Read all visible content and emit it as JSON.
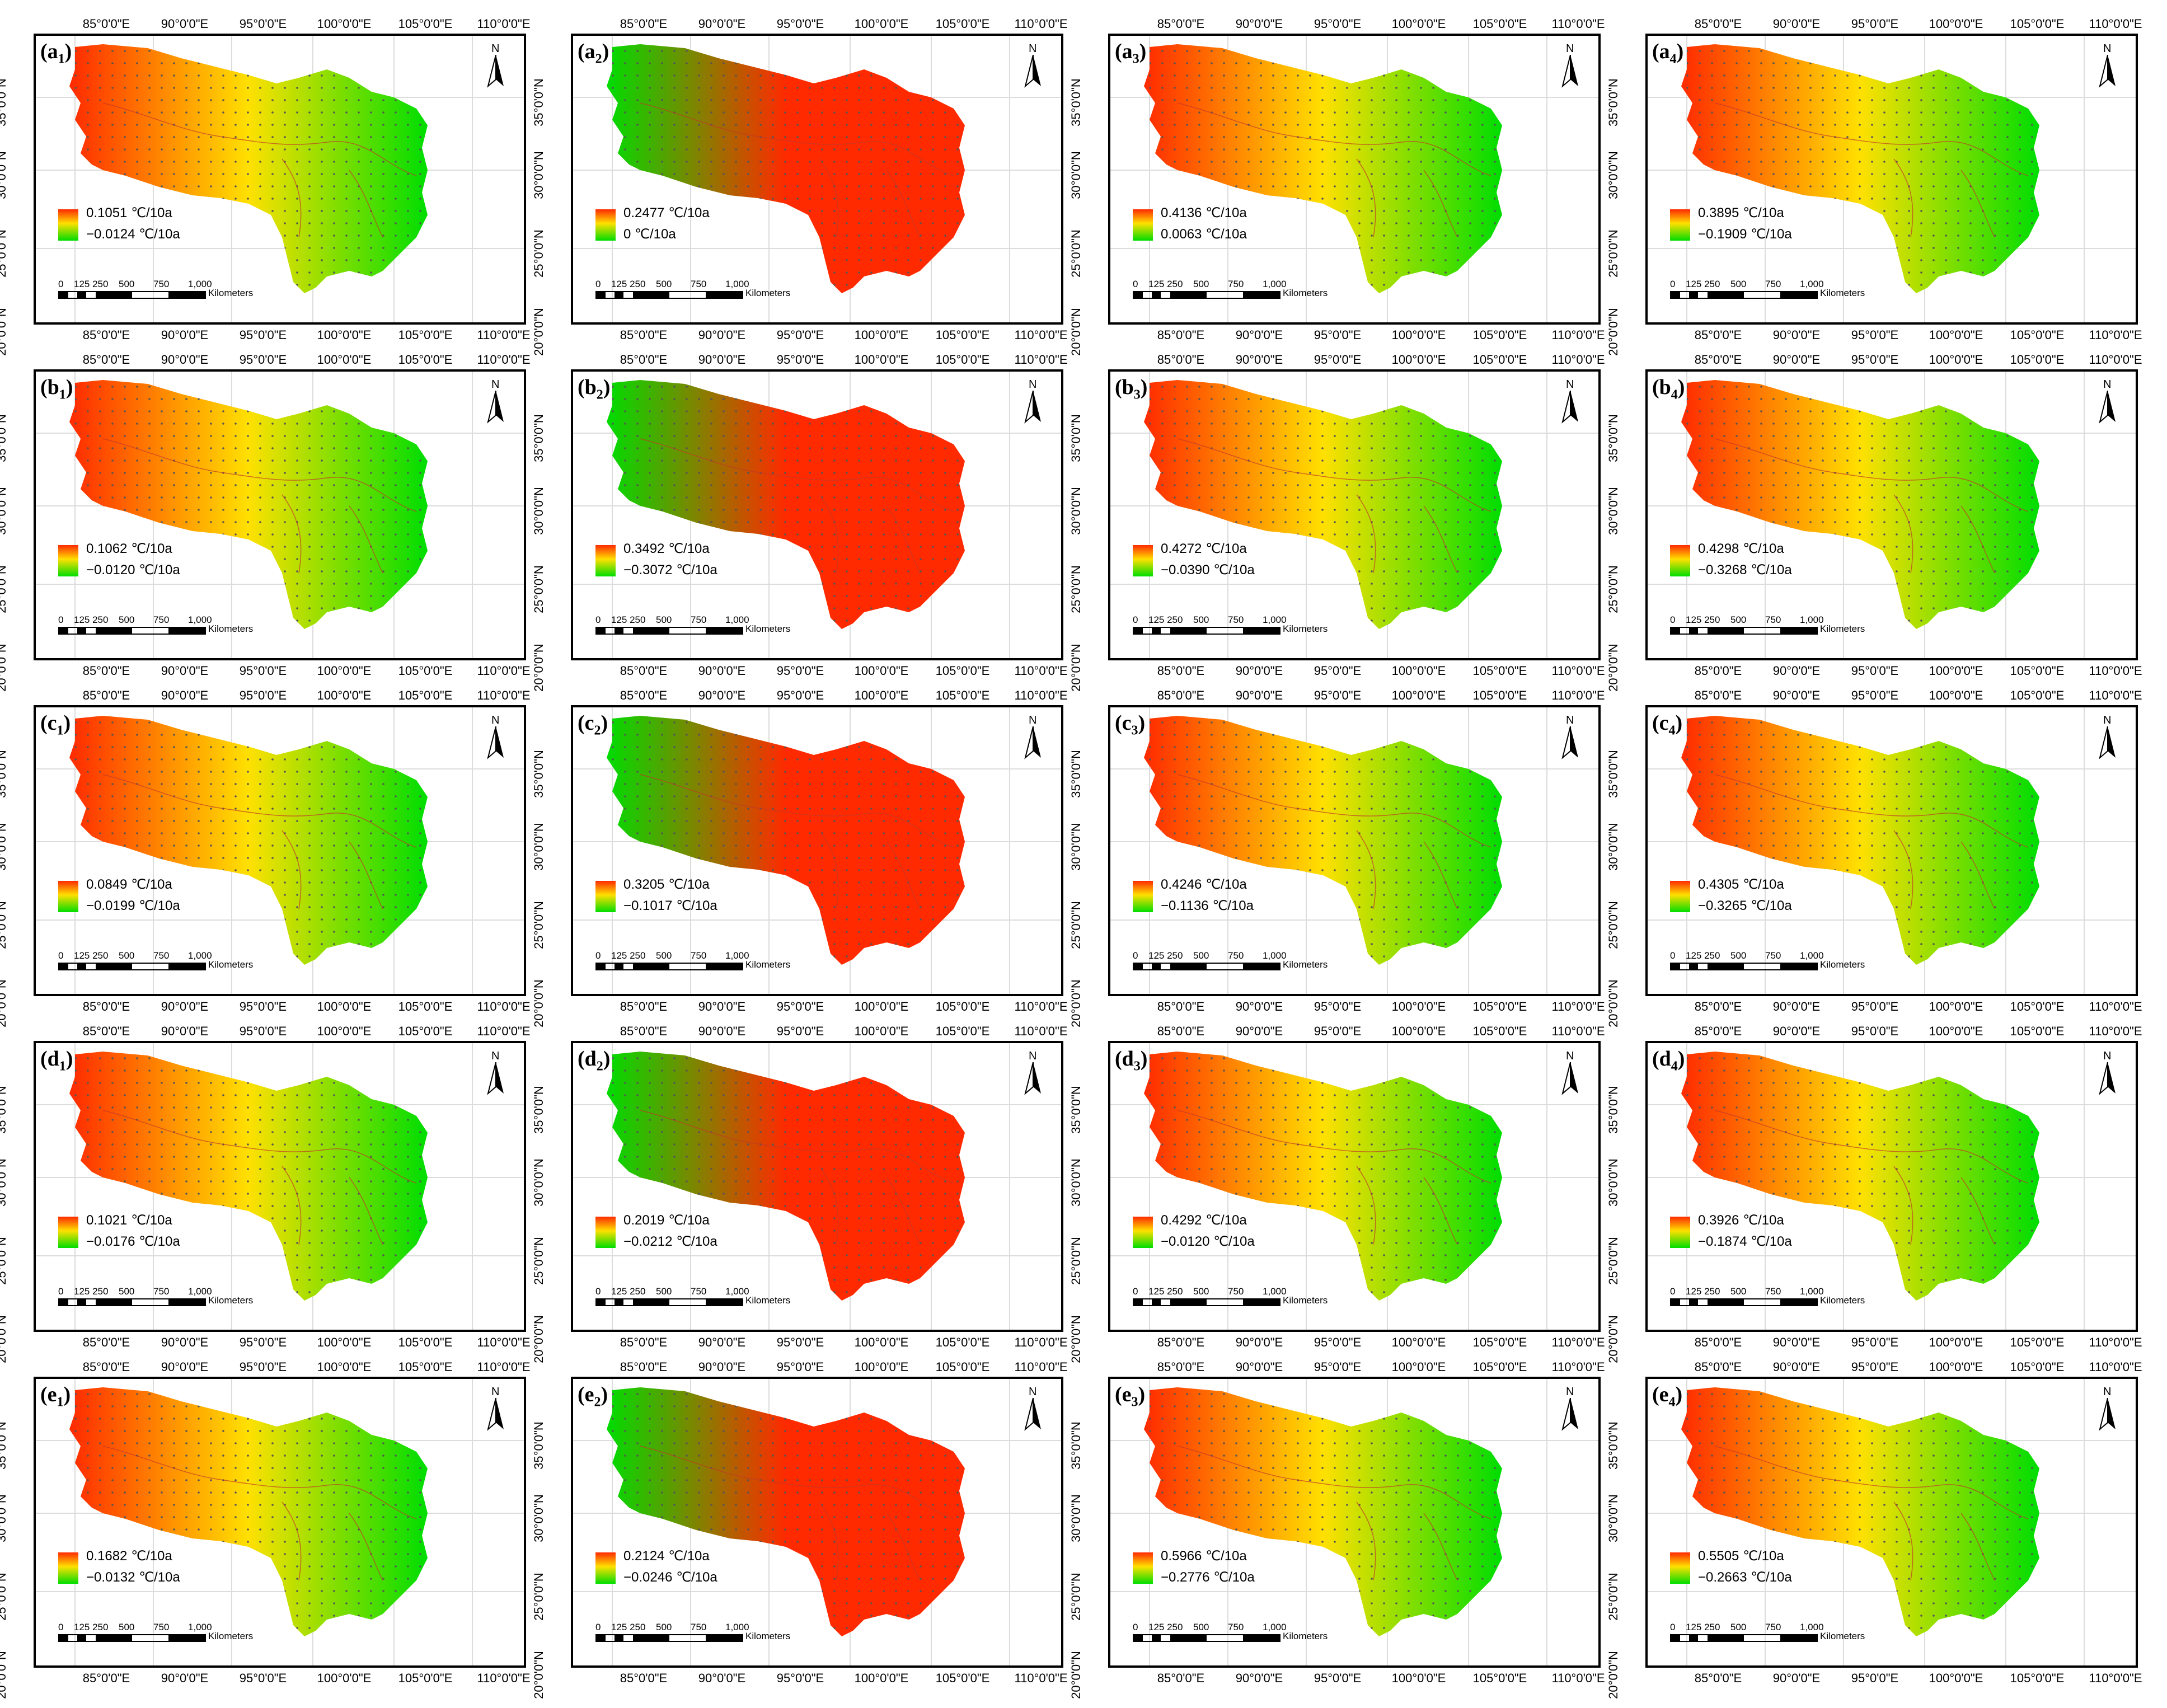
{
  "units": "℃/10a",
  "scale_bar": {
    "numbers": [
      "0",
      "125 250",
      "500",
      "750",
      "1,000"
    ],
    "unit": "Kilometers"
  },
  "north_label": "N",
  "lon_ticks": [
    "85°0'0\"E",
    "90°0'0\"E",
    "95°0'0\"E",
    "100°0'0\"E",
    "105°0'0\"E",
    "110°0'0\"E"
  ],
  "lat_ticks": [
    "35°0'0\"N",
    "30°0'0\"N",
    "25°0'0\"N",
    "20°0'0\"N"
  ],
  "colors": {
    "high": "#ff2a00",
    "mid": "#ffe000",
    "low": "#00dd00",
    "boundary": "#c0392b",
    "stipple": "#555555"
  },
  "panels": [
    {
      "id": "a1",
      "letter": "a",
      "sub": "1",
      "max": "0.1051 ℃/10a",
      "min": "−0.0124 ℃/10a"
    },
    {
      "id": "a2",
      "letter": "a",
      "sub": "2",
      "max": "0.2477 ℃/10a",
      "min": "0 ℃/10a"
    },
    {
      "id": "a3",
      "letter": "a",
      "sub": "3",
      "max": "0.4136 ℃/10a",
      "min": "0.0063 ℃/10a"
    },
    {
      "id": "a4",
      "letter": "a",
      "sub": "4",
      "max": "0.3895 ℃/10a",
      "min": "−0.1909 ℃/10a"
    },
    {
      "id": "b1",
      "letter": "b",
      "sub": "1",
      "max": "0.1062 ℃/10a",
      "min": "−0.0120 ℃/10a"
    },
    {
      "id": "b2",
      "letter": "b",
      "sub": "2",
      "max": "0.3492 ℃/10a",
      "min": "−0.3072 ℃/10a"
    },
    {
      "id": "b3",
      "letter": "b",
      "sub": "3",
      "max": "0.4272 ℃/10a",
      "min": "−0.0390 ℃/10a"
    },
    {
      "id": "b4",
      "letter": "b",
      "sub": "4",
      "max": "0.4298 ℃/10a",
      "min": "−0.3268 ℃/10a"
    },
    {
      "id": "c1",
      "letter": "c",
      "sub": "1",
      "max": "0.0849 ℃/10a",
      "min": "−0.0199 ℃/10a"
    },
    {
      "id": "c2",
      "letter": "c",
      "sub": "2",
      "max": "0.3205 ℃/10a",
      "min": "−0.1017 ℃/10a"
    },
    {
      "id": "c3",
      "letter": "c",
      "sub": "3",
      "max": "0.4246 ℃/10a",
      "min": "−0.1136 ℃/10a"
    },
    {
      "id": "c4",
      "letter": "c",
      "sub": "4",
      "max": "0.4305 ℃/10a",
      "min": "−0.3265 ℃/10a"
    },
    {
      "id": "d1",
      "letter": "d",
      "sub": "1",
      "max": "0.1021 ℃/10a",
      "min": "−0.0176 ℃/10a"
    },
    {
      "id": "d2",
      "letter": "d",
      "sub": "2",
      "max": "0.2019 ℃/10a",
      "min": "−0.0212 ℃/10a"
    },
    {
      "id": "d3",
      "letter": "d",
      "sub": "3",
      "max": "0.4292 ℃/10a",
      "min": "−0.0120 ℃/10a"
    },
    {
      "id": "d4",
      "letter": "d",
      "sub": "4",
      "max": "0.3926 ℃/10a",
      "min": "−0.1874 ℃/10a"
    },
    {
      "id": "e1",
      "letter": "e",
      "sub": "1",
      "max": "0.1682 ℃/10a",
      "min": "−0.0132 ℃/10a"
    },
    {
      "id": "e2",
      "letter": "e",
      "sub": "2",
      "max": "0.2124 ℃/10a",
      "min": "−0.0246 ℃/10a"
    },
    {
      "id": "e3",
      "letter": "e",
      "sub": "3",
      "max": "0.5966 ℃/10a",
      "min": "−0.2776 ℃/10a"
    },
    {
      "id": "e4",
      "letter": "e",
      "sub": "4",
      "max": "0.5505 ℃/10a",
      "min": "−0.2663 ℃/10a"
    }
  ]
}
